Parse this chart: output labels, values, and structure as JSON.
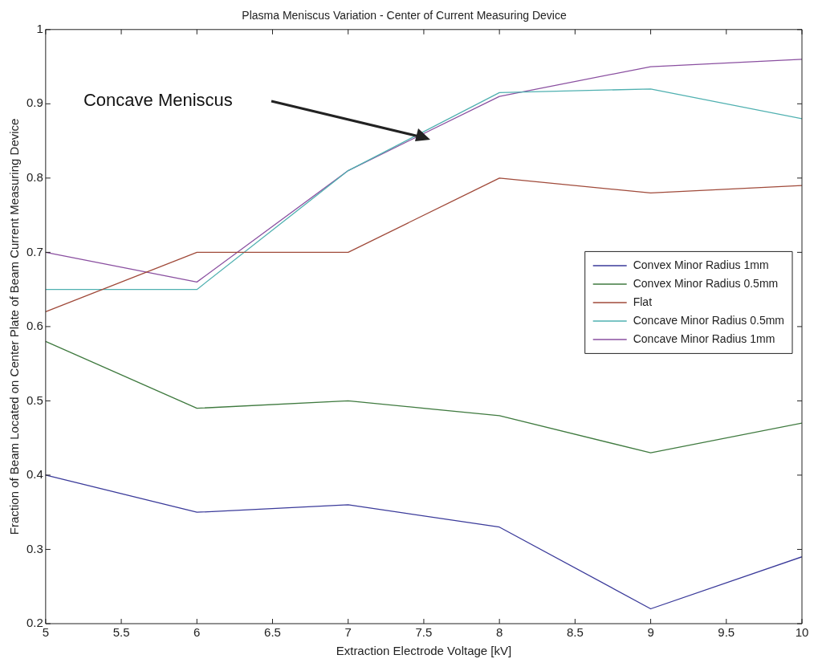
{
  "chart_data": {
    "type": "line",
    "title": "Plasma Meniscus Variation - Center of Current Measuring Device",
    "xlabel": "Extraction Electrode Voltage [kV]",
    "ylabel": "Fraction of Beam Located on Center Plate of Beam Current Measuring Device",
    "x": [
      5,
      6,
      7,
      8,
      9,
      10
    ],
    "series": [
      {
        "name": "Convex Minor Radius 1mm",
        "color": "#3a3a9a",
        "values": [
          0.4,
          0.35,
          0.36,
          0.33,
          0.22,
          0.29
        ]
      },
      {
        "name": "Convex Minor Radius 0.5mm",
        "color": "#3f7a3f",
        "values": [
          0.58,
          0.49,
          0.5,
          0.48,
          0.43,
          0.47
        ]
      },
      {
        "name": "Flat",
        "color": "#a04a3a",
        "values": [
          0.62,
          0.7,
          0.7,
          0.8,
          0.78,
          0.79
        ]
      },
      {
        "name": "Concave Minor Radius 0.5mm",
        "color": "#4fb0b0",
        "values": [
          0.65,
          0.65,
          0.81,
          0.915,
          0.92,
          0.88
        ]
      },
      {
        "name": "Concave Minor Radius 1mm",
        "color": "#8a4fa0",
        "values": [
          0.7,
          0.66,
          0.81,
          0.91,
          0.95,
          0.96
        ]
      }
    ],
    "xlim": [
      5,
      10
    ],
    "xticks": [
      5,
      5.5,
      6,
      6.5,
      7,
      7.5,
      8,
      8.5,
      9,
      9.5,
      10
    ],
    "ylim": [
      0.2,
      1
    ],
    "yticks": [
      0.2,
      0.3,
      0.4,
      0.5,
      0.6,
      0.7,
      0.8,
      0.9,
      1
    ],
    "annotations": [
      "Concave Meniscus"
    ],
    "grid": false,
    "legend": "right",
    "marker": "none",
    "line_style": "solid"
  }
}
